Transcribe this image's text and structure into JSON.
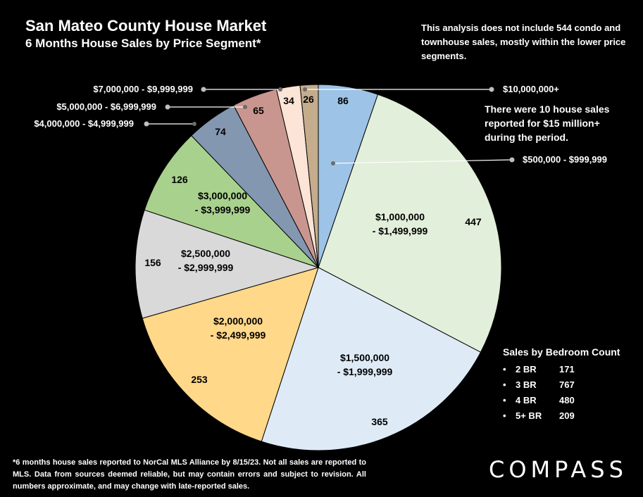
{
  "title": "San Mateo County House Market",
  "subtitle": "6 Months House Sales by Price Segment*",
  "note_top": "This analysis does not include 544 condo and townhouse sales, mostly within the lower price segments.",
  "note_mid": "There were 10 house sales reported for $15 million+ during the period.",
  "footnote": "*6 months house sales reported to NorCal MLS Alliance by 8/15/23. Not all sales are reported to MLS. Data from sources deemed reliable, but may contain errors and subject to revision. All numbers approximate, and may change with late-reported sales.",
  "logo": "COMPASS",
  "bedrooms": {
    "title": "Sales by Bedroom Count",
    "rows": [
      {
        "label": "2 BR",
        "value": "171"
      },
      {
        "label": "3 BR",
        "value": "767"
      },
      {
        "label": "4 BR",
        "value": "480"
      },
      {
        "label": "5+ BR",
        "value": "209"
      }
    ]
  },
  "chart_data": {
    "type": "pie",
    "title": "San Mateo County House Market",
    "subtitle": "6 Months House Sales by Price Segment*",
    "slices": [
      {
        "label": "$500,000 - $999,999",
        "value": 86,
        "color": "#9dc3e6",
        "label_mode": "callout"
      },
      {
        "label": "$1,000,000 - $1,499,999",
        "value": 447,
        "color": "#e2efda",
        "label_mode": "inside"
      },
      {
        "label": "$1,500,000 - $1,999,999",
        "value": 365,
        "color": "#deebf7",
        "label_mode": "inside"
      },
      {
        "label": "$2,000,000 - $2,499,999",
        "value": 253,
        "color": "#ffd88a",
        "label_mode": "inside"
      },
      {
        "label": "$2,500,000 - $2,999,999",
        "value": 156,
        "color": "#d9d9d9",
        "label_mode": "inside"
      },
      {
        "label": "$3,000,000 - $3,999,999",
        "value": 126,
        "color": "#a9d18e",
        "label_mode": "inside"
      },
      {
        "label": "$4,000,000 - $4,999,999",
        "value": 74,
        "color": "#8497b0",
        "label_mode": "callout"
      },
      {
        "label": "$5,000,000 - $6,999,999",
        "value": 65,
        "color": "#c9968f",
        "label_mode": "callout"
      },
      {
        "label": "$7,000,000 - $9,999,999",
        "value": 34,
        "color": "#fce4d6",
        "label_mode": "callout"
      },
      {
        "label": "$10,000,000+",
        "value": 26,
        "color": "#c4ac8c",
        "label_mode": "callout"
      }
    ]
  }
}
